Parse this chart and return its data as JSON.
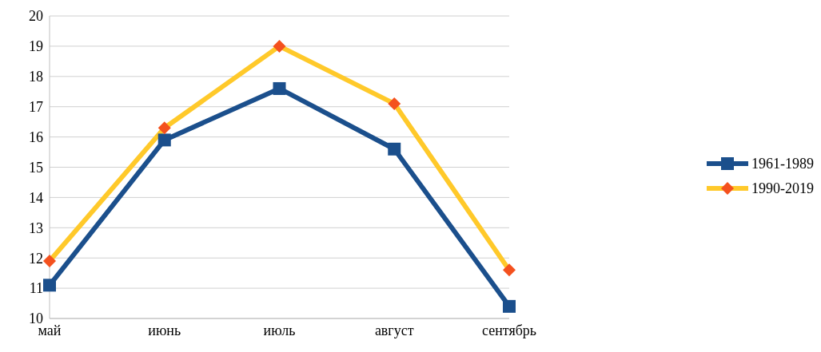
{
  "chart_data": {
    "type": "line",
    "categories": [
      "май",
      "июнь",
      "июль",
      "август",
      "сентябрь"
    ],
    "series": [
      {
        "name": "1961-1989",
        "color": "#1b4f8c",
        "marker": "square",
        "values": [
          11.1,
          15.9,
          17.6,
          15.6,
          10.4
        ]
      },
      {
        "name": "1990-2019",
        "color": "#ffc92a",
        "marker": "diamond",
        "values": [
          11.9,
          16.3,
          19.0,
          17.1,
          11.6
        ]
      }
    ],
    "ylim": [
      10,
      20
    ],
    "yticks": [
      10,
      11,
      12,
      13,
      14,
      15,
      16,
      17,
      18,
      19,
      20
    ],
    "grid": "y",
    "legend": "right"
  }
}
